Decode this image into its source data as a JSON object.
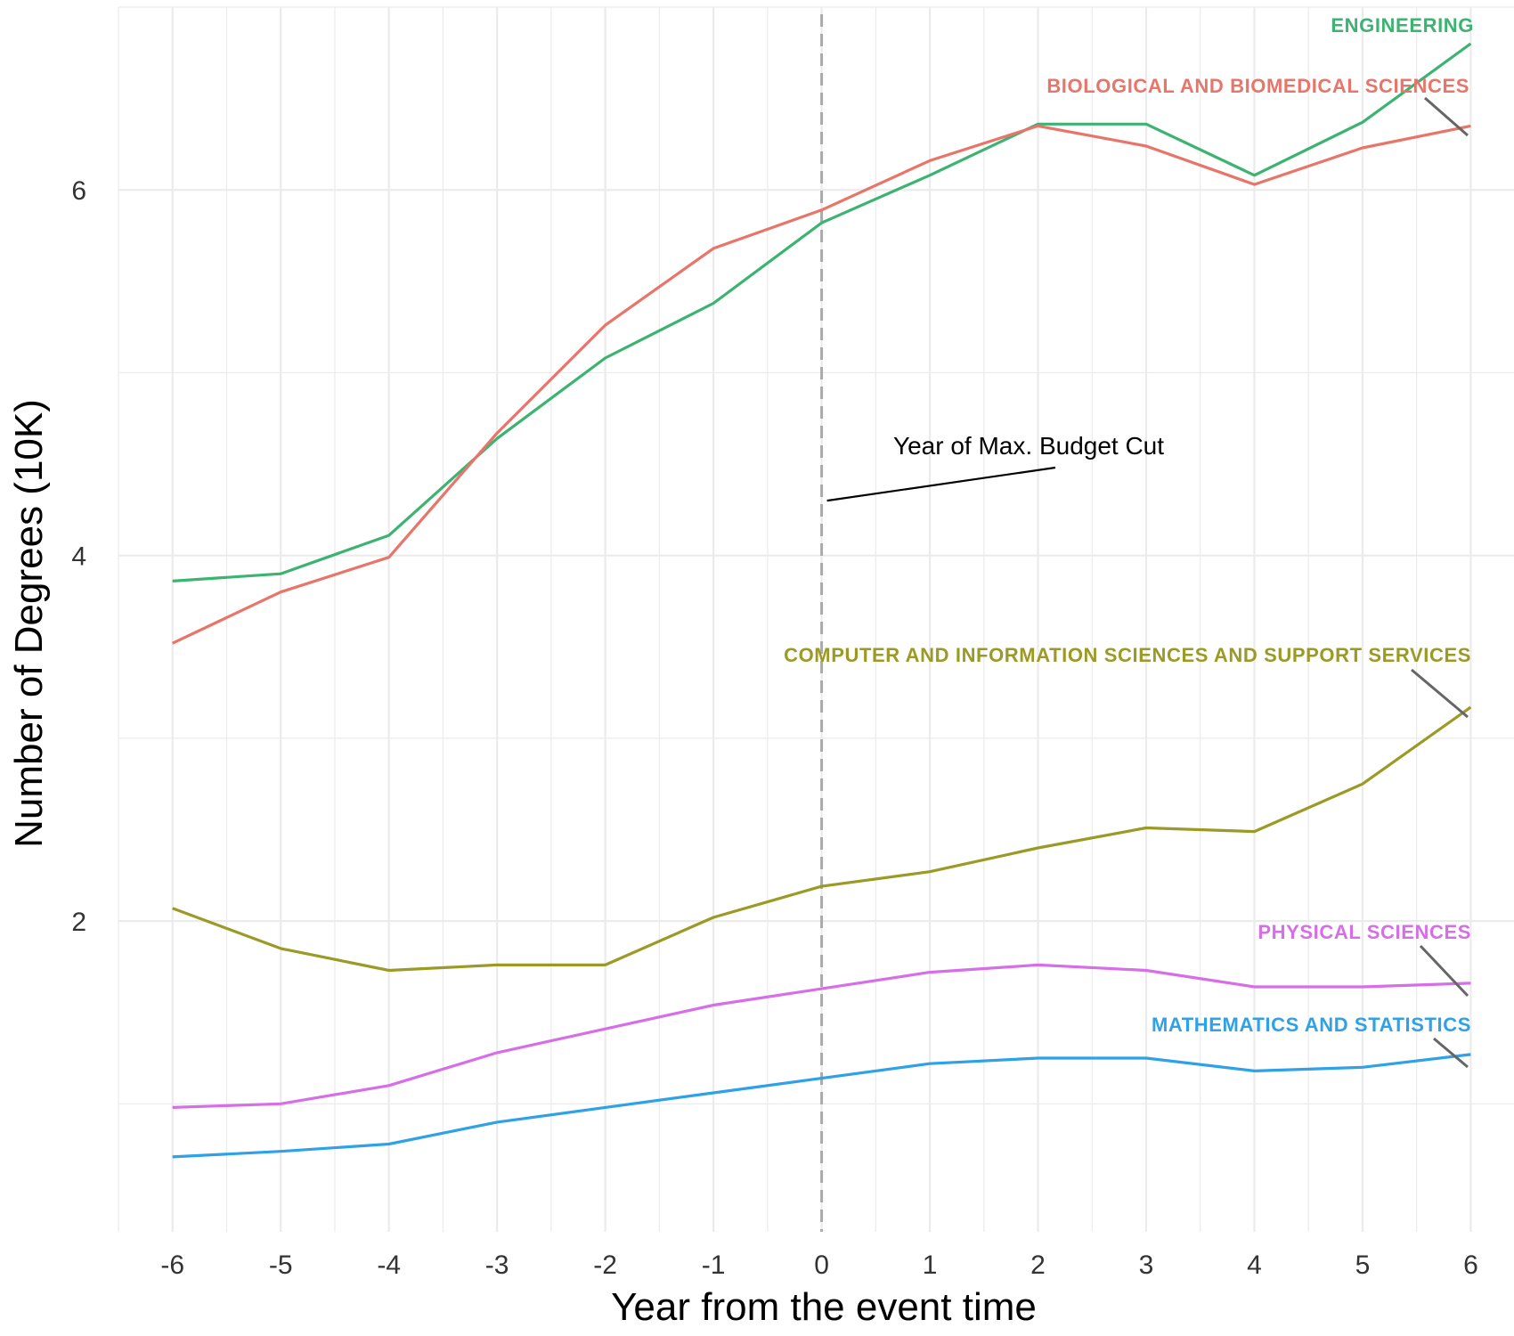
{
  "chart_data": {
    "type": "line",
    "xlabel": "Year from the event time",
    "ylabel": "Number of Degrees (10K)",
    "x": [
      -6,
      -5,
      -4,
      -3,
      -2,
      -1,
      0,
      1,
      2,
      3,
      4,
      5,
      6
    ],
    "x_ticks": [
      "-6",
      "-5",
      "-4",
      "-3",
      "-2",
      "-1",
      "0",
      "1",
      "2",
      "3",
      "4",
      "5",
      "6"
    ],
    "y_ticks": [
      "2",
      "4",
      "6"
    ],
    "xlim": [
      -6.5,
      6.4
    ],
    "ylim": [
      0.3,
      7.0
    ],
    "grid": true,
    "legend": "direct labels at line ends",
    "series": [
      {
        "name": "ENGINEERING",
        "color": "#3CB371",
        "values": [
          3.86,
          3.9,
          4.11,
          4.64,
          5.08,
          5.38,
          5.82,
          6.08,
          6.36,
          6.36,
          6.08,
          6.37,
          6.8
        ]
      },
      {
        "name": "BIOLOGICAL AND BIOMEDICAL SCIENCES",
        "color": "#E8756A",
        "values": [
          3.52,
          3.8,
          3.99,
          4.67,
          5.26,
          5.68,
          5.89,
          6.16,
          6.35,
          6.24,
          6.03,
          6.23,
          6.35
        ]
      },
      {
        "name": "COMPUTER AND INFORMATION SCIENCES AND SUPPORT SERVICES",
        "color": "#9B9A26",
        "values": [
          2.07,
          1.85,
          1.73,
          1.76,
          1.76,
          2.02,
          2.19,
          2.27,
          2.4,
          2.51,
          2.49,
          2.75,
          3.17
        ]
      },
      {
        "name": "PHYSICAL SCIENCES",
        "color": "#D66EE8",
        "values": [
          0.98,
          1.0,
          1.1,
          1.28,
          1.41,
          1.54,
          1.63,
          1.72,
          1.76,
          1.73,
          1.64,
          1.64,
          1.66
        ]
      },
      {
        "name": "MATHEMATICS AND STATISTICS",
        "color": "#2FA1E6",
        "values": [
          0.71,
          0.74,
          0.78,
          0.9,
          0.98,
          1.06,
          1.14,
          1.22,
          1.25,
          1.25,
          1.18,
          1.2,
          1.27
        ]
      }
    ],
    "annotation": {
      "text": "Year of Max. Budget Cut",
      "x": 0,
      "pointer_y": 4.3
    },
    "colors": {
      "grid": "#EBEBEB",
      "vline": "#AAAAAA",
      "connector": "#666666"
    }
  }
}
